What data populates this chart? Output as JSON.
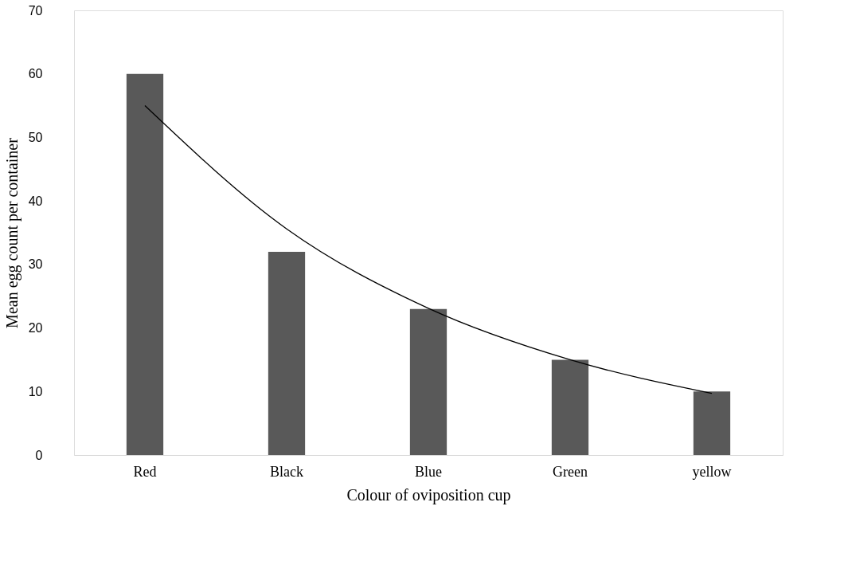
{
  "chart_data": {
    "type": "bar",
    "xlabel": "Colour of oviposition cup",
    "ylabel": "Mean egg count per container",
    "categories": [
      "Red",
      "Black",
      "Blue",
      "Green",
      "yellow"
    ],
    "series": [
      {
        "color": "#595959",
        "values": [
          60,
          32,
          23,
          15,
          10
        ]
      },
      {
        "type": "line",
        "color": "#000000",
        "x": [
          "Red",
          "Black",
          "Blue",
          "Green",
          "yellow"
        ],
        "values": [
          55,
          35.6,
          23.1,
          15,
          9.7
        ]
      }
    ],
    "ylim": [
      0,
      70
    ],
    "yticks": [
      0,
      10,
      20,
      30,
      40,
      50,
      60,
      70
    ],
    "grid": false
  }
}
